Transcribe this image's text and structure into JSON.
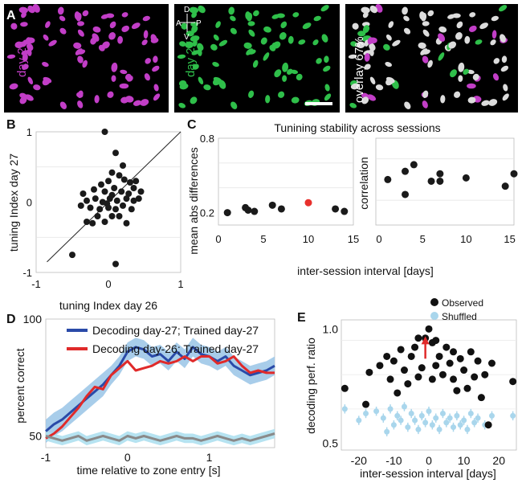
{
  "panel_a": {
    "letter": "A",
    "label_day26": "day 26",
    "label_day27": "day 27",
    "label_overlay": "overlay 67%",
    "compass": {
      "d": "D",
      "v": "V",
      "a": "A",
      "p": "P"
    },
    "colors": {
      "day26": "#c23ec7",
      "day27": "#2fbf4a",
      "overlap": "#dcdcdc",
      "background": "#000000"
    }
  },
  "panel_b": {
    "letter": "B",
    "chart_data": {
      "type": "scatter",
      "xlabel": "tuning Index day 26",
      "ylabel": "tuning Index day 27",
      "xlim": [
        -1,
        1
      ],
      "ylim": [
        -1,
        1
      ],
      "xticks": [
        "-1",
        "0",
        "1"
      ],
      "yticks": [
        "-1",
        "0",
        "1"
      ],
      "diagonal": true,
      "points": [
        {
          "x": -0.05,
          "y": 1.0
        },
        {
          "x": 0.1,
          "y": 0.7
        },
        {
          "x": 0.2,
          "y": 0.52
        },
        {
          "x": 0.05,
          "y": 0.42
        },
        {
          "x": 0.15,
          "y": 0.38
        },
        {
          "x": 0.22,
          "y": 0.32
        },
        {
          "x": 0.3,
          "y": 0.28
        },
        {
          "x": 0.38,
          "y": 0.3
        },
        {
          "x": 0.0,
          "y": 0.3
        },
        {
          "x": -0.1,
          "y": 0.25
        },
        {
          "x": -0.2,
          "y": 0.18
        },
        {
          "x": -0.05,
          "y": 0.15
        },
        {
          "x": 0.08,
          "y": 0.2
        },
        {
          "x": 0.18,
          "y": 0.15
        },
        {
          "x": 0.28,
          "y": 0.12
        },
        {
          "x": 0.45,
          "y": 0.15
        },
        {
          "x": 0.42,
          "y": 0.05
        },
        {
          "x": 0.35,
          "y": 0.02
        },
        {
          "x": 0.25,
          "y": 0.05
        },
        {
          "x": 0.12,
          "y": 0.02
        },
        {
          "x": 0.02,
          "y": 0.05
        },
        {
          "x": -0.08,
          "y": 0.0
        },
        {
          "x": -0.18,
          "y": 0.05
        },
        {
          "x": -0.3,
          "y": 0.02
        },
        {
          "x": -0.38,
          "y": -0.05
        },
        {
          "x": -0.25,
          "y": -0.08
        },
        {
          "x": -0.12,
          "y": -0.1
        },
        {
          "x": 0.0,
          "y": -0.08
        },
        {
          "x": 0.1,
          "y": -0.1
        },
        {
          "x": 0.2,
          "y": -0.05
        },
        {
          "x": 0.32,
          "y": -0.1
        },
        {
          "x": -0.15,
          "y": -0.2
        },
        {
          "x": -0.3,
          "y": -0.28
        },
        {
          "x": -0.22,
          "y": -0.3
        },
        {
          "x": 0.05,
          "y": -0.2
        },
        {
          "x": 0.15,
          "y": -0.2
        },
        {
          "x": -0.05,
          "y": -0.28
        },
        {
          "x": 0.25,
          "y": -0.3
        },
        {
          "x": -0.5,
          "y": -0.75
        },
        {
          "x": 0.1,
          "y": -0.88
        },
        {
          "x": 0.05,
          "y": 0.1
        },
        {
          "x": -0.02,
          "y": -0.02
        },
        {
          "x": 0.35,
          "y": 0.2
        },
        {
          "x": -0.35,
          "y": 0.12
        }
      ]
    }
  },
  "panel_c": {
    "letter": "C",
    "title": "Tunining stability across sessions",
    "xlabel": "inter-session interval [days]",
    "chart_data": [
      {
        "type": "scatter",
        "ylabel": "mean abs differences",
        "xlim": [
          0,
          15
        ],
        "ylim": [
          0.1,
          0.8
        ],
        "xticks": [
          "0",
          "5",
          "10",
          "15"
        ],
        "yticks": [
          {
            "v": 0.2,
            "label": "0.2"
          },
          {
            "v": 0.8,
            "label": "0.8"
          }
        ],
        "points": [
          {
            "x": 1,
            "y": 0.2
          },
          {
            "x": 3,
            "y": 0.24
          },
          {
            "x": 3.3,
            "y": 0.22
          },
          {
            "x": 4,
            "y": 0.21
          },
          {
            "x": 6,
            "y": 0.26
          },
          {
            "x": 7,
            "y": 0.23
          },
          {
            "x": 10,
            "y": 0.28,
            "highlight": true
          },
          {
            "x": 13,
            "y": 0.23
          },
          {
            "x": 14,
            "y": 0.21
          }
        ],
        "colors": {
          "point": "#1a1a1a",
          "highlight": "#e8302c"
        }
      },
      {
        "type": "scatter",
        "ylabel": "correlation",
        "xlim": [
          0,
          15.5
        ],
        "ylim": [
          -0.05,
          1
        ],
        "xticks": [
          "0",
          "5",
          "10",
          "15"
        ],
        "points": [
          {
            "x": 1,
            "y": 0.5
          },
          {
            "x": 3,
            "y": 0.32
          },
          {
            "x": 3,
            "y": 0.6
          },
          {
            "x": 4,
            "y": 0.68
          },
          {
            "x": 6,
            "y": 0.48
          },
          {
            "x": 7,
            "y": 0.48
          },
          {
            "x": 7,
            "y": 0.57
          },
          {
            "x": 10,
            "y": 0.52
          },
          {
            "x": 14.5,
            "y": 0.42
          },
          {
            "x": 15.5,
            "y": 0.57
          }
        ]
      }
    ]
  },
  "panel_d": {
    "letter": "D",
    "chart_data": {
      "type": "line",
      "xlabel": "time relative to zone entry [s]",
      "ylabel": "percent correct",
      "xlim": [
        -1,
        1.8
      ],
      "ylim": [
        45,
        100
      ],
      "xticks": [
        "-1",
        "0",
        "1"
      ],
      "yticks": [
        "50",
        "100"
      ],
      "x": [
        -1.0,
        -0.9,
        -0.8,
        -0.7,
        -0.6,
        -0.5,
        -0.4,
        -0.3,
        -0.2,
        -0.1,
        0.0,
        0.1,
        0.2,
        0.3,
        0.4,
        0.5,
        0.6,
        0.7,
        0.8,
        0.9,
        1.0,
        1.1,
        1.2,
        1.3,
        1.4,
        1.5,
        1.6,
        1.7,
        1.8
      ],
      "series": [
        {
          "name": "Decoding day-27; Trained day-27",
          "color": "#2a4aa8",
          "band": "#9fc8e8",
          "values": [
            52,
            55,
            57,
            60,
            63,
            66,
            69,
            72,
            76,
            80,
            86,
            88,
            87,
            84,
            85,
            82,
            86,
            83,
            88,
            85,
            84,
            82,
            84,
            80,
            78,
            76,
            77,
            78,
            80
          ],
          "err": [
            5,
            5,
            5,
            5,
            5,
            5,
            5,
            5,
            4,
            4,
            4,
            4,
            4,
            4,
            4,
            4,
            4,
            4,
            4,
            4,
            4,
            4,
            4,
            4,
            4,
            4,
            4,
            4,
            4
          ]
        },
        {
          "name": "Decoding day-26; Trained day-27",
          "color": "#e02a2a",
          "values": [
            49,
            51,
            54,
            58,
            62,
            67,
            71,
            70,
            76,
            79,
            82,
            78,
            79,
            80,
            82,
            81,
            82,
            84,
            82,
            84,
            84,
            81,
            82,
            84,
            80,
            77,
            78,
            77,
            77
          ]
        },
        {
          "name": "",
          "color": "#8a8a8a",
          "band": "#aee0f0",
          "values": [
            50,
            49,
            48,
            49,
            50,
            48,
            49,
            50,
            49,
            48,
            50,
            49,
            50,
            49,
            48,
            49,
            50,
            49,
            49,
            48,
            49,
            50,
            49,
            48,
            49,
            48,
            49,
            50,
            51
          ],
          "err": [
            2,
            2,
            2,
            2,
            2,
            2,
            2,
            2,
            2,
            2,
            2,
            2,
            2,
            2,
            2,
            2,
            2,
            2,
            2,
            2,
            2,
            2,
            2,
            2,
            2,
            2,
            2,
            2,
            2
          ]
        }
      ]
    }
  },
  "panel_e": {
    "letter": "E",
    "chart_data": {
      "type": "scatter",
      "xlabel": "inter-session interval [days]",
      "ylabel": "decoding perf. ratio",
      "xlim": [
        -25,
        25
      ],
      "ylim": [
        0.47,
        1.04
      ],
      "xticks": [
        "-20",
        "-10",
        "0",
        "10",
        "20"
      ],
      "yticks": [
        {
          "v": 0.5,
          "label": "0.5"
        },
        {
          "v": 1.0,
          "label": "1.0"
        }
      ],
      "legend": [
        {
          "name": "Observed",
          "color": "#111111"
        },
        {
          "name": "Shuffled",
          "color": "#a9d6ec"
        }
      ],
      "arrow_at": {
        "x": -1,
        "y": 0.87,
        "color": "#e02a2a"
      },
      "observed": [
        {
          "x": -24,
          "y": 0.74
        },
        {
          "x": -18,
          "y": 0.67
        },
        {
          "x": -17,
          "y": 0.81
        },
        {
          "x": -14,
          "y": 0.84
        },
        {
          "x": -12,
          "y": 0.88
        },
        {
          "x": -11,
          "y": 0.78
        },
        {
          "x": -10,
          "y": 0.86
        },
        {
          "x": -9,
          "y": 0.72
        },
        {
          "x": -8,
          "y": 0.91
        },
        {
          "x": -7,
          "y": 0.82
        },
        {
          "x": -6,
          "y": 0.76
        },
        {
          "x": -5,
          "y": 0.88
        },
        {
          "x": -4,
          "y": 0.92
        },
        {
          "x": -3,
          "y": 0.96
        },
        {
          "x": -2,
          "y": 0.83
        },
        {
          "x": -1,
          "y": 0.96
        },
        {
          "x": 0,
          "y": 1.0
        },
        {
          "x": 1,
          "y": 0.94
        },
        {
          "x": 2,
          "y": 0.84
        },
        {
          "x": 2,
          "y": 0.95
        },
        {
          "x": 3,
          "y": 0.88
        },
        {
          "x": 4,
          "y": 0.8
        },
        {
          "x": 5,
          "y": 0.92
        },
        {
          "x": 6,
          "y": 0.85
        },
        {
          "x": 7,
          "y": 0.78
        },
        {
          "x": 7,
          "y": 0.9
        },
        {
          "x": 8,
          "y": 0.73
        },
        {
          "x": 9,
          "y": 0.87
        },
        {
          "x": 10,
          "y": 0.82
        },
        {
          "x": 11,
          "y": 0.74
        },
        {
          "x": 12,
          "y": 0.9
        },
        {
          "x": 13,
          "y": 0.79
        },
        {
          "x": 14,
          "y": 0.86
        },
        {
          "x": 15,
          "y": 0.7
        },
        {
          "x": 16,
          "y": 0.8
        },
        {
          "x": 17,
          "y": 0.58
        },
        {
          "x": 18,
          "y": 0.85
        },
        {
          "x": 24,
          "y": 0.77
        },
        {
          "x": -3,
          "y": 0.79
        },
        {
          "x": 1,
          "y": 0.78
        }
      ],
      "shuffled": [
        {
          "x": -24,
          "y": 0.65
        },
        {
          "x": -18,
          "y": 0.63
        },
        {
          "x": -15,
          "y": 0.64
        },
        {
          "x": -13,
          "y": 0.61
        },
        {
          "x": -11,
          "y": 0.65
        },
        {
          "x": -10,
          "y": 0.58
        },
        {
          "x": -9,
          "y": 0.62
        },
        {
          "x": -8,
          "y": 0.6
        },
        {
          "x": -7,
          "y": 0.66
        },
        {
          "x": -6,
          "y": 0.57
        },
        {
          "x": -5,
          "y": 0.63
        },
        {
          "x": -4,
          "y": 0.6
        },
        {
          "x": -3,
          "y": 0.56
        },
        {
          "x": -2,
          "y": 0.62
        },
        {
          "x": -1,
          "y": 0.59
        },
        {
          "x": 0,
          "y": 0.64
        },
        {
          "x": 1,
          "y": 0.58
        },
        {
          "x": 2,
          "y": 0.61
        },
        {
          "x": 3,
          "y": 0.56
        },
        {
          "x": 4,
          "y": 0.63
        },
        {
          "x": 5,
          "y": 0.59
        },
        {
          "x": 6,
          "y": 0.61
        },
        {
          "x": 7,
          "y": 0.57
        },
        {
          "x": 8,
          "y": 0.62
        },
        {
          "x": 9,
          "y": 0.58
        },
        {
          "x": 10,
          "y": 0.6
        },
        {
          "x": 11,
          "y": 0.56
        },
        {
          "x": 12,
          "y": 0.63
        },
        {
          "x": 13,
          "y": 0.59
        },
        {
          "x": 14,
          "y": 0.61
        },
        {
          "x": 16,
          "y": 0.58
        },
        {
          "x": 18,
          "y": 0.62
        },
        {
          "x": 24,
          "y": 0.62
        },
        {
          "x": -20,
          "y": 0.6
        },
        {
          "x": -12,
          "y": 0.55
        }
      ]
    }
  }
}
